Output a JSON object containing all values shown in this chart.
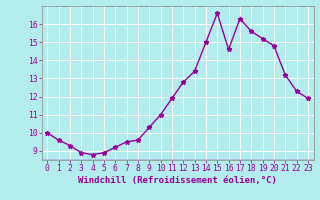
{
  "x": [
    0,
    1,
    2,
    3,
    4,
    5,
    6,
    7,
    8,
    9,
    10,
    11,
    12,
    13,
    14,
    15,
    16,
    17,
    18,
    19,
    20,
    21,
    22,
    23
  ],
  "y": [
    10.0,
    9.6,
    9.3,
    8.9,
    8.8,
    8.9,
    9.2,
    9.5,
    9.6,
    10.3,
    11.0,
    11.9,
    12.8,
    13.4,
    15.0,
    16.6,
    14.6,
    16.3,
    15.6,
    15.2,
    14.8,
    13.2,
    12.3,
    11.9
  ],
  "line_color": "#990099",
  "marker": "*",
  "marker_size": 3.5,
  "bg_color": "#b3ecec",
  "grid_color": "#ffffff",
  "xlabel": "Windchill (Refroidissement éolien,°C)",
  "xlabel_fontsize": 6.5,
  "xtick_labels": [
    "0",
    "1",
    "2",
    "3",
    "4",
    "5",
    "6",
    "7",
    "8",
    "9",
    "10",
    "11",
    "12",
    "13",
    "14",
    "15",
    "16",
    "17",
    "18",
    "19",
    "20",
    "21",
    "22",
    "23"
  ],
  "ytick_labels": [
    "9",
    "10",
    "11",
    "12",
    "13",
    "14",
    "15",
    "16"
  ],
  "ylim": [
    8.5,
    17.0
  ],
  "xlim": [
    -0.5,
    23.5
  ],
  "tick_fontsize": 5.8,
  "linewidth": 1.0
}
